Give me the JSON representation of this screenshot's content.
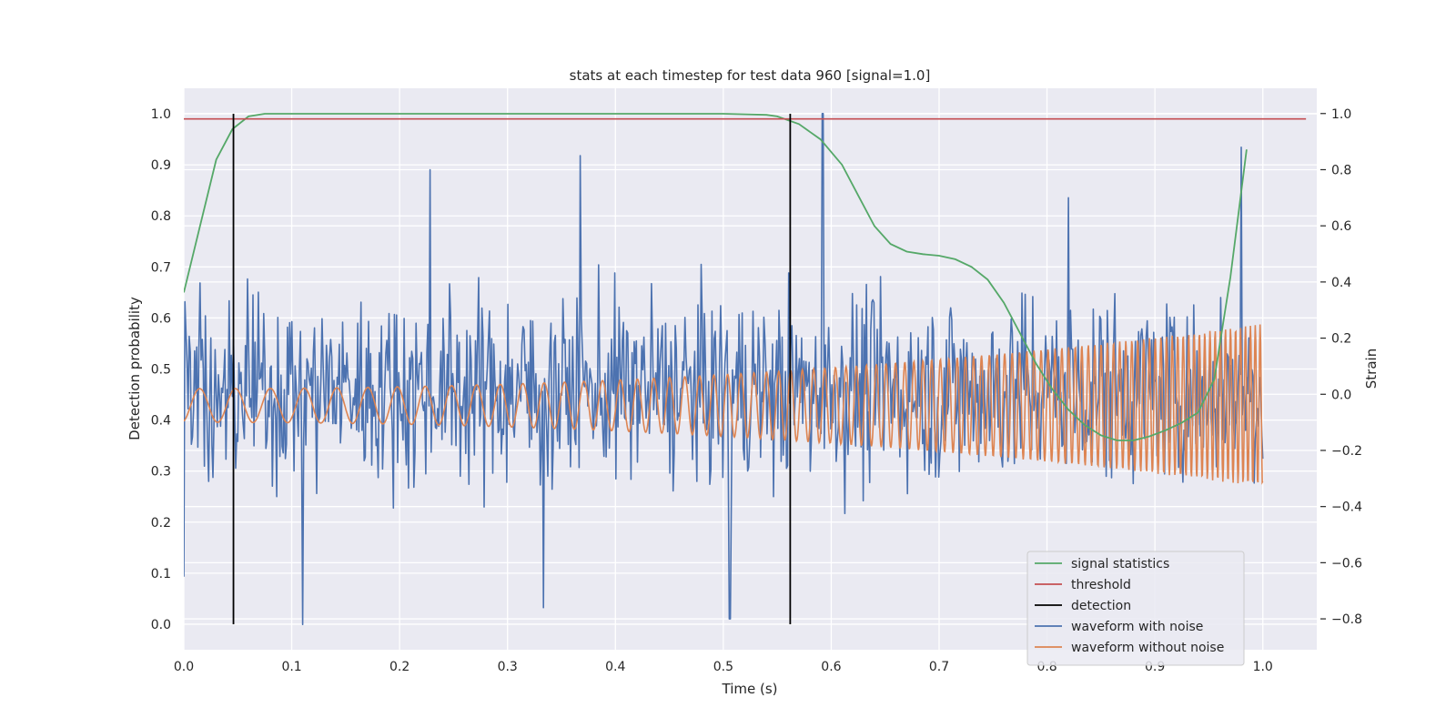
{
  "chart_data": {
    "type": "line",
    "title": "stats at each timestep for test data 960 [signal=1.0]",
    "xlabel": "Time (s)",
    "ylabel_left": "Detection probability",
    "ylabel_right": "Strain",
    "xlim": [
      0.0,
      1.05
    ],
    "ylim_left": [
      -0.05,
      1.05
    ],
    "ylim_right": [
      -0.91,
      1.09
    ],
    "x_ticks": [
      "0.0",
      "0.1",
      "0.2",
      "0.3",
      "0.4",
      "0.5",
      "0.6",
      "0.7",
      "0.8",
      "0.9",
      "1.0"
    ],
    "y_ticks_left": [
      "0.0",
      "0.1",
      "0.2",
      "0.3",
      "0.4",
      "0.5",
      "0.6",
      "0.7",
      "0.8",
      "0.9",
      "1.0"
    ],
    "y_ticks_right": [
      "−0.8",
      "−0.6",
      "−0.4",
      "−0.2",
      "0.0",
      "0.2",
      "0.4",
      "0.6",
      "0.8",
      "1.0"
    ],
    "grid": true,
    "legend_position": "lower-right",
    "series": [
      {
        "name": "signal statistics",
        "axis": "left",
        "color": "#55a868",
        "x": [
          0.0,
          0.015,
          0.03,
          0.045,
          0.06,
          0.075,
          0.1,
          0.2,
          0.3,
          0.4,
          0.5,
          0.54,
          0.55,
          0.57,
          0.59,
          0.61,
          0.625,
          0.64,
          0.655,
          0.67,
          0.685,
          0.7,
          0.715,
          0.73,
          0.745,
          0.76,
          0.775,
          0.79,
          0.805,
          0.82,
          0.835,
          0.85,
          0.865,
          0.88,
          0.895,
          0.91,
          0.925,
          0.94,
          0.955,
          0.97,
          0.985
        ],
        "y": [
          0.65,
          0.78,
          0.91,
          0.97,
          0.995,
          1.0,
          1.0,
          1.0,
          1.0,
          1.0,
          1.0,
          0.998,
          0.995,
          0.98,
          0.95,
          0.9,
          0.84,
          0.78,
          0.745,
          0.73,
          0.725,
          0.722,
          0.715,
          0.7,
          0.675,
          0.63,
          0.57,
          0.51,
          0.46,
          0.42,
          0.39,
          0.37,
          0.36,
          0.36,
          0.368,
          0.38,
          0.395,
          0.415,
          0.48,
          0.68,
          0.93
        ]
      },
      {
        "name": "threshold",
        "axis": "left",
        "color": "#c44e52",
        "x": [
          0.0,
          1.04
        ],
        "y": [
          0.99,
          0.99
        ]
      },
      {
        "name": "detection",
        "axis": "left",
        "color": "#000000",
        "type": "vlines",
        "x": [
          0.046,
          0.562
        ],
        "y_range": [
          0.0,
          1.0
        ]
      },
      {
        "name": "waveform with noise",
        "axis": "right",
        "color": "#4c72b0",
        "x_range": [
          0.0,
          1.0
        ],
        "n_points": 1000,
        "peak_points": {
          "x": [
            0.0,
            0.11,
            0.228,
            0.333,
            0.367,
            0.506,
            0.592,
            0.82,
            0.98
          ],
          "y": [
            -0.65,
            -0.82,
            0.8,
            -0.76,
            0.85,
            -0.8,
            1.0,
            0.7,
            0.88
          ]
        }
      },
      {
        "name": "waveform without noise",
        "axis": "right",
        "color": "#dd8452",
        "x_range": [
          0.0,
          1.0
        ],
        "amplitude_start": 0.06,
        "amplitude_end": 0.29,
        "frequency_start_hz": 30,
        "frequency_end_hz": 160
      }
    ]
  }
}
